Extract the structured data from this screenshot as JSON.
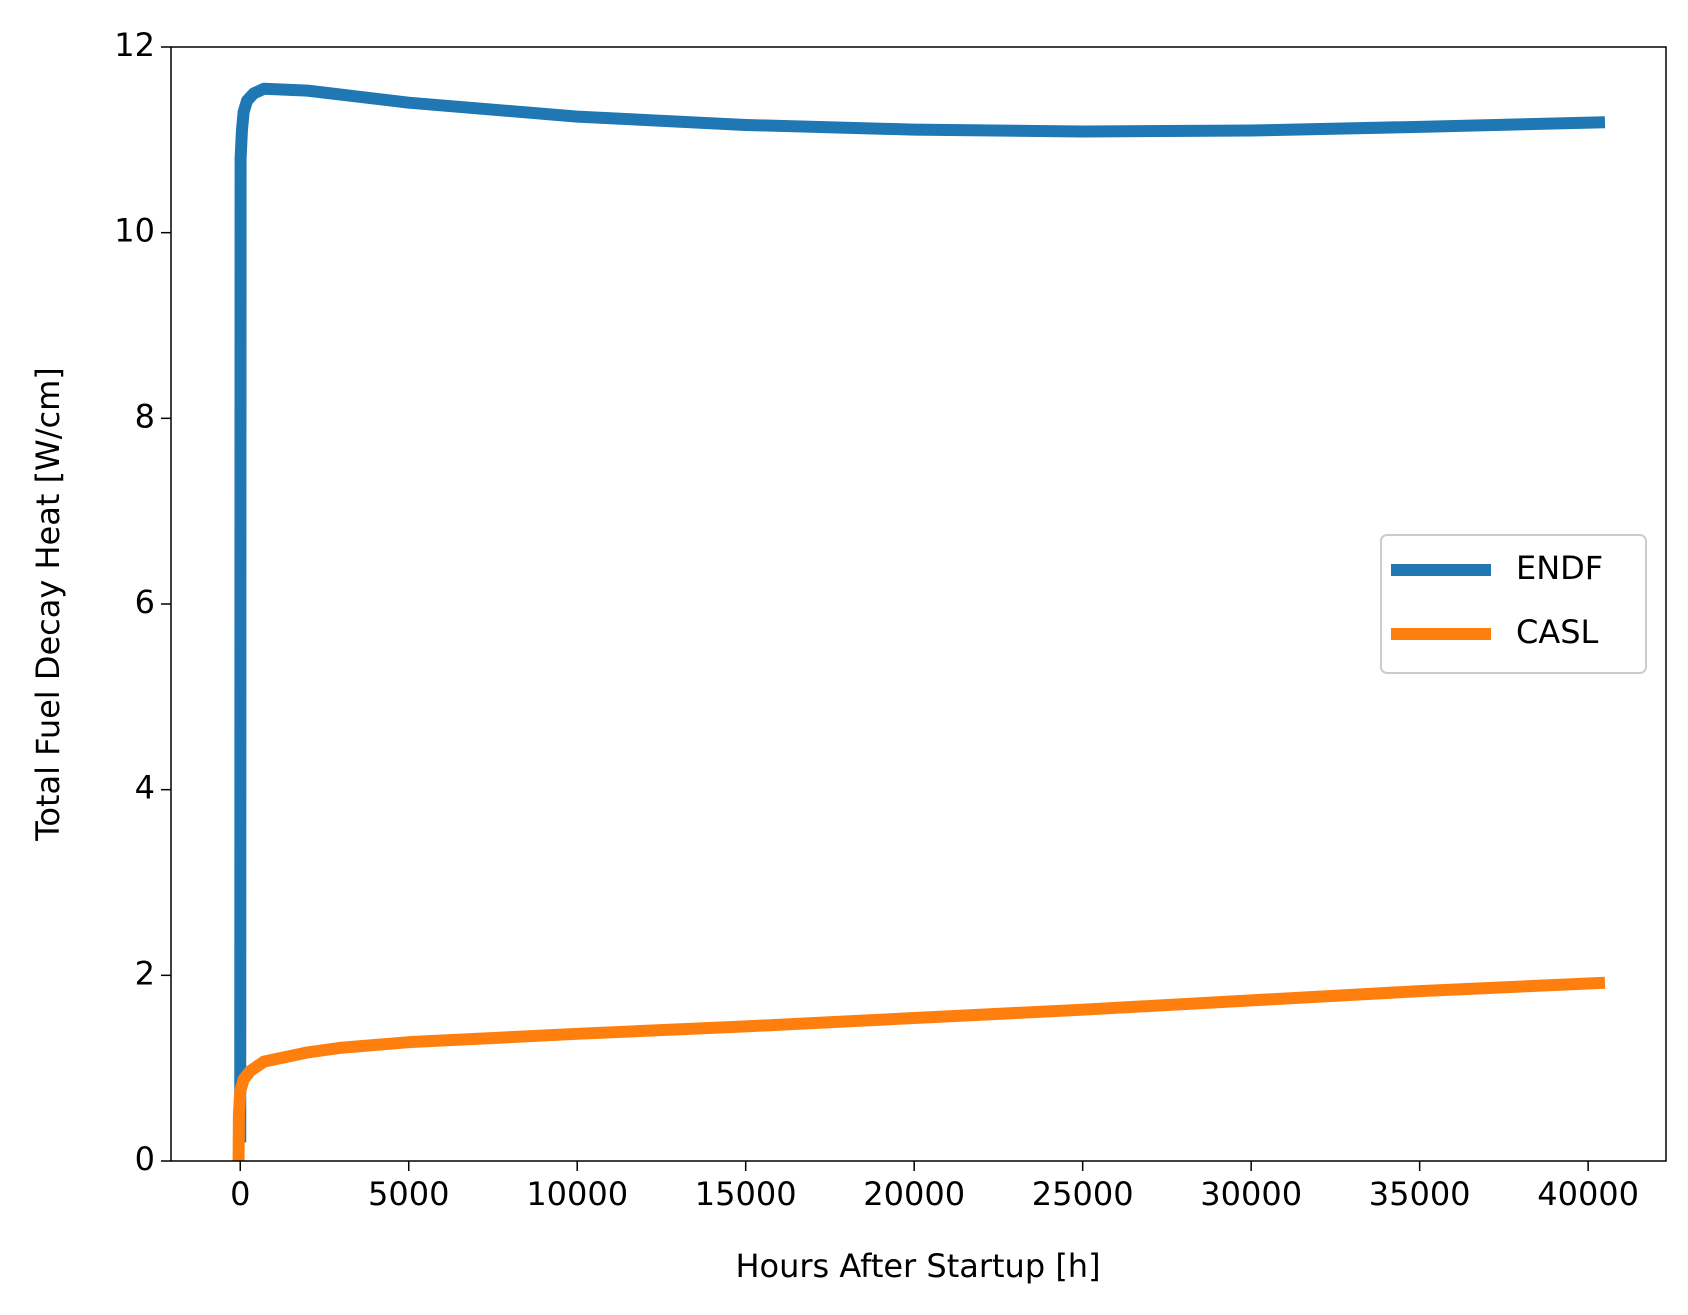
{
  "chart_data": {
    "type": "line",
    "x_label": "Hours After Startup [h]",
    "y_label": "Total Fuel Decay Heat [W/cm]",
    "xlim": [
      -2055,
      42311
    ],
    "ylim": [
      0,
      12
    ],
    "xticks": [
      0,
      5000,
      10000,
      15000,
      20000,
      25000,
      30000,
      35000,
      40000
    ],
    "yticks": [
      0,
      2,
      4,
      6,
      8,
      10,
      12
    ],
    "grid": false,
    "legend": "center right",
    "series": [
      {
        "name": "ENDF",
        "color": "#1f77b4",
        "x": [
          0,
          10,
          50,
          100,
          200,
          400,
          700,
          2000,
          5000,
          10000,
          15000,
          20000,
          25000,
          30000,
          35000,
          40500
        ],
        "values": [
          0.2,
          10.8,
          11.1,
          11.3,
          11.42,
          11.5,
          11.55,
          11.53,
          11.4,
          11.25,
          11.16,
          11.11,
          11.09,
          11.1,
          11.14,
          11.19
        ]
      },
      {
        "name": "CASL",
        "color": "#ff7f0e",
        "x": [
          -50,
          -40,
          0,
          100,
          300,
          700,
          2000,
          3000,
          5000,
          10000,
          15000,
          20000,
          25000,
          30000,
          35000,
          40500
        ],
        "values": [
          0,
          0.5,
          0.75,
          0.88,
          0.97,
          1.07,
          1.17,
          1.22,
          1.28,
          1.37,
          1.45,
          1.54,
          1.63,
          1.73,
          1.83,
          1.92
        ]
      }
    ]
  }
}
